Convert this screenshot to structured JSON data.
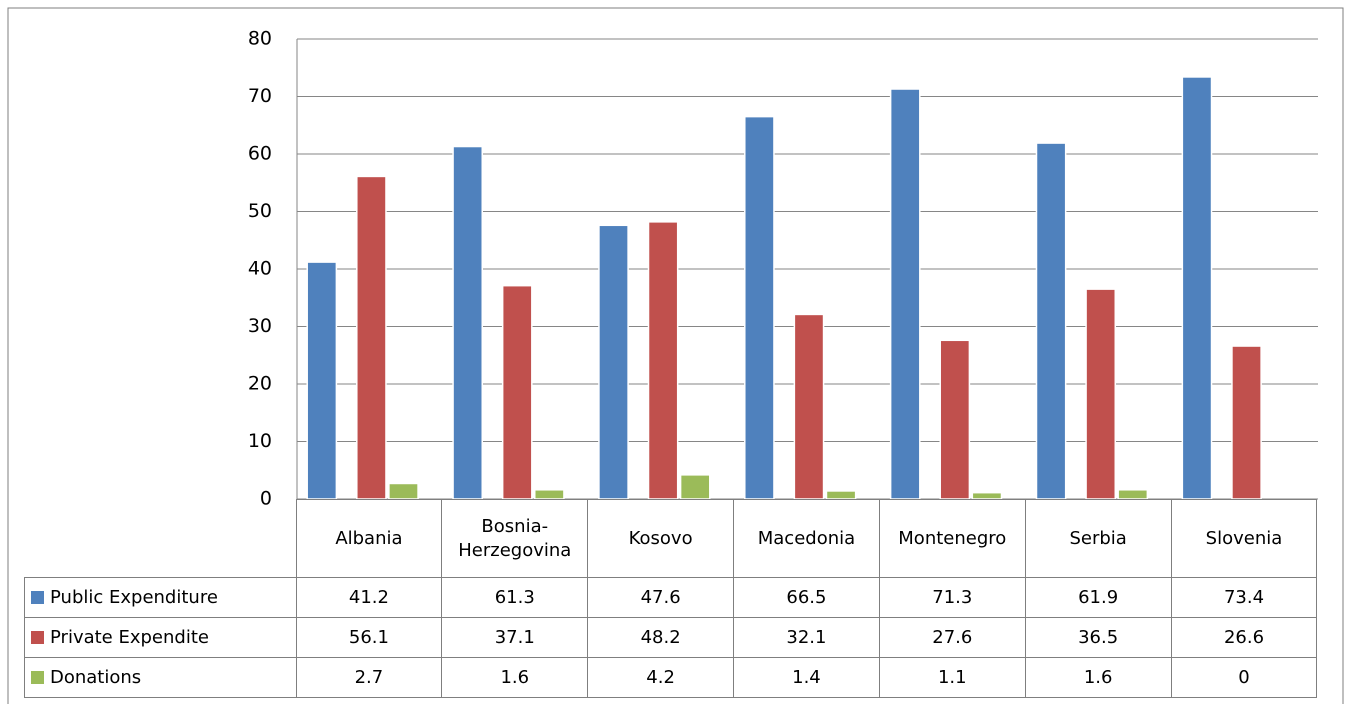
{
  "chart_data": {
    "type": "bar",
    "categories": [
      "Albania",
      "Bosnia-Herzegovina",
      "Kosovo",
      "Macedonia",
      "Montenegro",
      "Serbia",
      "Slovenia"
    ],
    "series": [
      {
        "name": "Public Expenditure",
        "color": "#4f81bd",
        "values": [
          41.2,
          61.3,
          47.6,
          66.5,
          71.3,
          61.9,
          73.4
        ]
      },
      {
        "name": "Private Expendite",
        "color": "#c0504d",
        "values": [
          56.1,
          37.1,
          48.2,
          32.1,
          27.6,
          36.5,
          26.6
        ]
      },
      {
        "name": "Donations",
        "color": "#9bbb59",
        "values": [
          2.7,
          1.6,
          4.2,
          1.4,
          1.1,
          1.6,
          0
        ]
      }
    ],
    "ylim": [
      0,
      80
    ],
    "yticks": [
      0,
      10,
      20,
      30,
      40,
      50,
      60,
      70,
      80
    ],
    "grid": true
  }
}
